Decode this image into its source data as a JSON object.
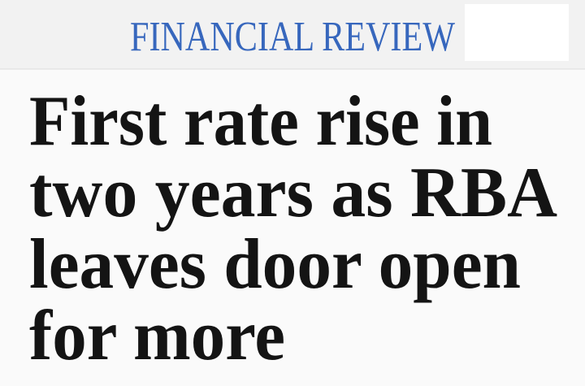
{
  "header": {
    "title": "FINANCIAL REVIEW"
  },
  "headline": {
    "lines": [
      "First rate rise in",
      "two years as RBA",
      "leaves door open",
      "for more"
    ]
  }
}
